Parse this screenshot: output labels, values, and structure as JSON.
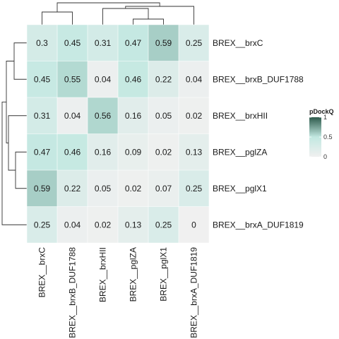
{
  "chart_data": {
    "type": "heatmap",
    "rows": [
      "BREX__brxC",
      "BREX__brxB_DUF1788",
      "BREX__brxHII",
      "BREX__pglZA",
      "BREX__pglX1",
      "BREX__brxA_DUF1819"
    ],
    "columns": [
      "BREX__brxC",
      "BREX__brxB_DUF1788",
      "BREX__brxHII",
      "BREX__pglZA",
      "BREX__pglX1",
      "BREX__brxA_DUF1819"
    ],
    "values": [
      [
        0.3,
        0.45,
        0.31,
        0.47,
        0.59,
        0.25
      ],
      [
        0.45,
        0.55,
        0.04,
        0.46,
        0.22,
        0.04
      ],
      [
        0.31,
        0.04,
        0.56,
        0.16,
        0.05,
        0.02
      ],
      [
        0.47,
        0.46,
        0.16,
        0.09,
        0.02,
        0.13
      ],
      [
        0.59,
        0.22,
        0.05,
        0.02,
        0.07,
        0.25
      ],
      [
        0.25,
        0.04,
        0.02,
        0.13,
        0.25,
        0
      ]
    ],
    "cell_labels": [
      [
        "0.3",
        "0.45",
        "0.31",
        "0.47",
        "0.59",
        "0.25"
      ],
      [
        "0.45",
        "0.55",
        "0.04",
        "0.46",
        "0.22",
        "0.04"
      ],
      [
        "0.31",
        "0.04",
        "0.56",
        "0.16",
        "0.05",
        "0.02"
      ],
      [
        "0.47",
        "0.46",
        "0.16",
        "0.09",
        "0.02",
        "0.13"
      ],
      [
        "0.59",
        "0.22",
        "0.05",
        "0.02",
        "0.07",
        "0.25"
      ],
      [
        "0.25",
        "0.04",
        "0.02",
        "0.13",
        "0.25",
        "0"
      ]
    ],
    "legend": {
      "title": "pDockQ",
      "ticks": [
        "1",
        "0.5",
        "0"
      ],
      "tick_values": [
        1,
        0.5,
        0
      ],
      "colors": {
        "low": "#f0f0f0",
        "mid": "#c2e8e1",
        "high": "#2e5a4c"
      }
    },
    "dendrograms": {
      "row": true,
      "column": true
    }
  }
}
